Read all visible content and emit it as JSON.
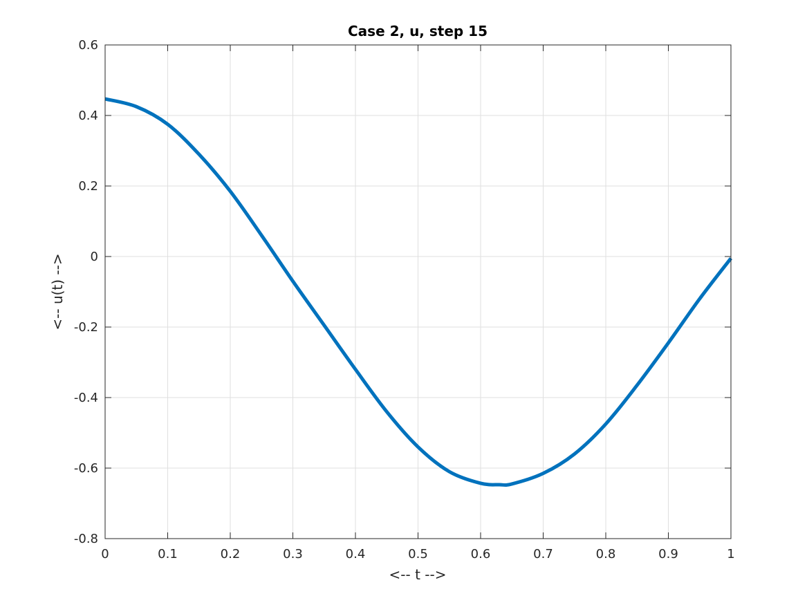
{
  "chart_data": {
    "type": "line",
    "title": "Case 2, u, step 15",
    "xlabel": "<-- t -->",
    "ylabel": "<-- u(t) -->",
    "xlim": [
      0,
      1
    ],
    "ylim": [
      -0.8,
      0.6
    ],
    "xticks": [
      0,
      0.1,
      0.2,
      0.3,
      0.4,
      0.5,
      0.6,
      0.7,
      0.8,
      0.9,
      1
    ],
    "xtick_labels": [
      "0",
      "0.1",
      "0.2",
      "0.3",
      "0.4",
      "0.5",
      "0.6",
      "0.7",
      "0.8",
      "0.9",
      "1"
    ],
    "yticks": [
      -0.8,
      -0.6,
      -0.4,
      -0.2,
      0,
      0.2,
      0.4,
      0.6
    ],
    "ytick_labels": [
      "-0.8",
      "-0.6",
      "-0.4",
      "-0.2",
      "0",
      "0.2",
      "0.4",
      "0.6"
    ],
    "grid": true,
    "series": [
      {
        "color": "#0072bd",
        "x": [
          0,
          0.05,
          0.1,
          0.15,
          0.2,
          0.25,
          0.3,
          0.35,
          0.4,
          0.45,
          0.5,
          0.55,
          0.6,
          0.63,
          0.65,
          0.7,
          0.75,
          0.8,
          0.85,
          0.9,
          0.95,
          1.0
        ],
        "y": [
          0.447,
          0.425,
          0.375,
          0.29,
          0.185,
          0.06,
          -0.07,
          -0.195,
          -0.32,
          -0.44,
          -0.54,
          -0.61,
          -0.643,
          -0.647,
          -0.645,
          -0.615,
          -0.56,
          -0.475,
          -0.365,
          -0.245,
          -0.12,
          -0.005
        ]
      }
    ]
  }
}
